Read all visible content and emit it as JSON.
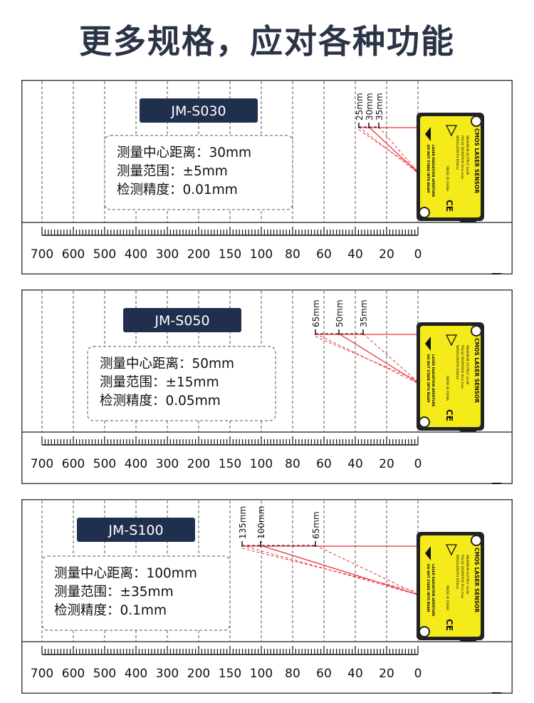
{
  "title": "更多规格，应对各种功能",
  "colors": {
    "title": "#2b3447",
    "model_box": "#1f2f4d",
    "laser": "#e8303a",
    "sensor_body": "#f5ea1a"
  },
  "scale_labels": [
    "700",
    "600",
    "500",
    "400",
    "300",
    "200",
    "150",
    "100",
    "80",
    "60",
    "40",
    "20",
    "0"
  ],
  "sensor": {
    "title": "CMOS LASER SENSOR",
    "spec_lines": [
      "MAXIMUM OUTPUT    1mW",
      "PULSE DURATION   5ms max",
      "WAVELENGTH        650nm"
    ],
    "made_in": "MADE IN CHINA",
    "warning_lines": [
      "LASER RADIATION APERTURE",
      "DO NOT STARE INTO BEAM"
    ],
    "ce_mark": "CE"
  },
  "panels": [
    {
      "model": "JM-S030",
      "specs": [
        "测量中心距离：30mm",
        "测量范围：±5mm",
        "检测精度：0.01mm"
      ],
      "markers": [
        "25mm",
        "30mm",
        "35mm"
      ]
    },
    {
      "model": "JM-S050",
      "specs": [
        "测量中心距离：50mm",
        "测量范围：±15mm",
        "检测精度：0.05mm"
      ],
      "markers": [
        "65mm",
        "50mm",
        "35mm"
      ]
    },
    {
      "model": "JM-S100",
      "specs": [
        "测量中心距离：100mm",
        "测量范围：±35mm",
        "检测精度：0.1mm"
      ],
      "markers": [
        "135mm",
        "100mm",
        "65mm"
      ]
    }
  ]
}
